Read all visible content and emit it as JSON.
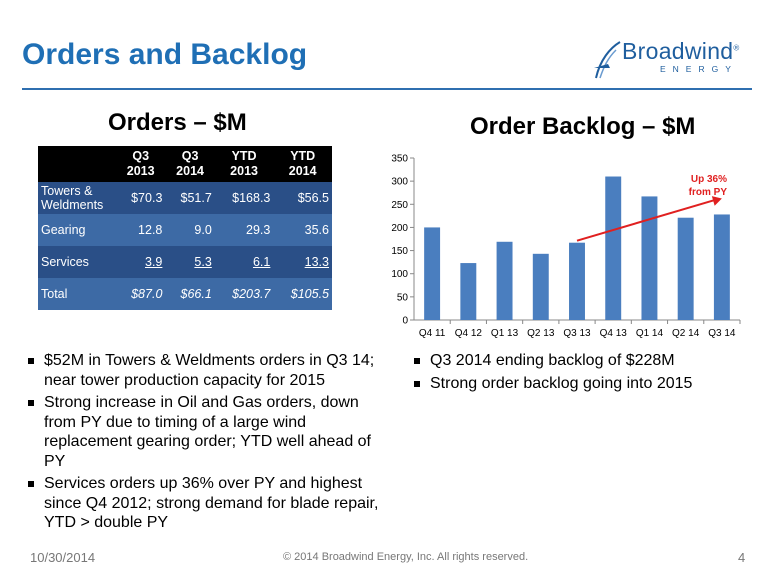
{
  "slide": {
    "title": "Orders and Backlog",
    "logo": {
      "word": "Broadwind",
      "sub": "ENERGY",
      "registered": "®"
    }
  },
  "orders": {
    "heading": "Orders – $M",
    "columns": [
      {
        "l1": "Q3",
        "l2": "2013"
      },
      {
        "l1": "Q3",
        "l2": "2014"
      },
      {
        "l1": "YTD",
        "l2": "2013"
      },
      {
        "l1": "YTD",
        "l2": "2014"
      }
    ],
    "rows": [
      {
        "label": "Towers & Weldments",
        "values": [
          "$70.3",
          "$51.7",
          "$168.3",
          "$56.5"
        ]
      },
      {
        "label": "Gearing",
        "values": [
          "12.8",
          "9.0",
          "29.3",
          "35.6"
        ]
      },
      {
        "label": "Services",
        "values": [
          "3.9",
          "5.3",
          "6.1",
          "13.3"
        ]
      },
      {
        "label": "Total",
        "values": [
          "$87.0",
          "$66.1",
          "$203.7",
          "$105.5"
        ]
      }
    ]
  },
  "backlog": {
    "heading": "Order Backlog – $M",
    "annotation_l1": "Up 36%",
    "annotation_l2": "from PY"
  },
  "chart_data": {
    "type": "bar",
    "categories": [
      "Q4 11",
      "Q4 12",
      "Q1 13",
      "Q2 13",
      "Q3 13",
      "Q4 13",
      "Q1 14",
      "Q2 14",
      "Q3 14"
    ],
    "values": [
      200,
      123,
      169,
      143,
      167,
      310,
      267,
      221,
      228
    ],
    "ylim": [
      0,
      350
    ],
    "yticks": [
      0,
      50,
      100,
      150,
      200,
      250,
      300,
      350
    ],
    "bar_color": "#4a7ebf",
    "trend_line": {
      "from": "Q3 13",
      "to": "Q3 14",
      "color": "#e02020"
    },
    "annotation": "Up 36% from PY",
    "annotation_color": "#e02020",
    "grid": false
  },
  "left_bullets": [
    "$52M in Towers & Weldments orders in Q3 14; near tower production capacity for 2015",
    "Strong increase in Oil and Gas orders, down from PY due to timing of a large wind replacement gearing order; YTD well ahead of PY",
    "Services orders up 36% over PY and highest since Q4 2012; strong demand for blade repair, YTD > double PY"
  ],
  "right_bullets": [
    "Q3 2014 ending backlog of $228M",
    "Strong order backlog going into 2015"
  ],
  "footer": {
    "date": "10/30/2014",
    "copyright": "© 2014 Broadwind Energy, Inc. All rights reserved.",
    "page": "4"
  }
}
